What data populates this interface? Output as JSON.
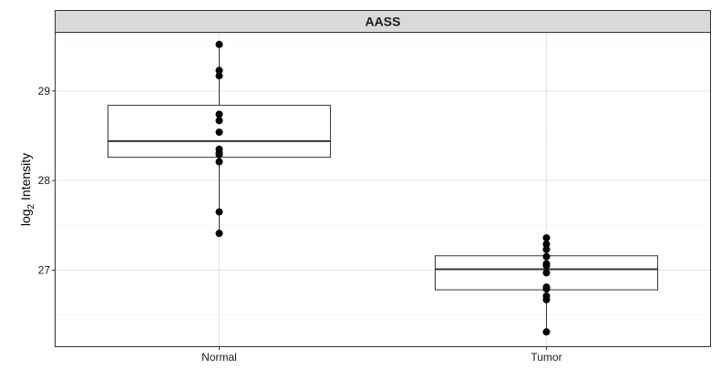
{
  "chart_data": {
    "type": "box",
    "facet_title": "AASS",
    "ylabel": {
      "main": "log",
      "subscript": "2",
      "rest": " Intensity"
    },
    "xlabel": "",
    "categories": [
      "Normal",
      "Tumor"
    ],
    "ylim": [
      26.15,
      29.65
    ],
    "y_ticks": [
      27,
      28,
      29
    ],
    "y_tick_labels": [
      "27",
      "28",
      "29"
    ],
    "grid": true,
    "boxes": [
      {
        "category": "Normal",
        "whisker_low": 27.41,
        "q1": 28.26,
        "median": 28.44,
        "q3": 28.84,
        "whisker_high": 29.52
      },
      {
        "category": "Tumor",
        "whisker_low": 26.31,
        "q1": 26.78,
        "median": 27.01,
        "q3": 27.16,
        "whisker_high": 27.36
      }
    ],
    "points": [
      {
        "category": "Normal",
        "values": [
          29.52,
          29.23,
          29.17,
          28.74,
          28.67,
          28.54,
          28.35,
          28.31,
          28.29,
          28.21,
          27.65,
          27.41
        ]
      },
      {
        "category": "Tumor",
        "values": [
          27.36,
          27.29,
          27.23,
          27.15,
          27.07,
          27.05,
          26.97,
          26.81,
          26.79,
          26.71,
          26.67,
          26.31
        ]
      }
    ]
  }
}
